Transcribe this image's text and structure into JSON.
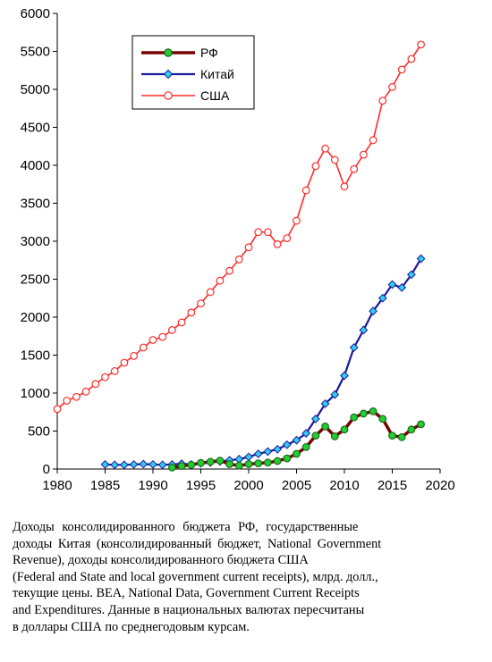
{
  "chart_data": {
    "type": "line",
    "title": "",
    "xlabel": "",
    "ylabel": "",
    "xlim": [
      1980,
      2020
    ],
    "ylim": [
      0,
      6000
    ],
    "x_ticks": [
      1980,
      1985,
      1990,
      1995,
      2000,
      2005,
      2010,
      2015,
      2020
    ],
    "y_ticks": [
      0,
      500,
      1000,
      1500,
      2000,
      2500,
      3000,
      3500,
      4000,
      4500,
      5000,
      5500,
      6000
    ],
    "grid": false,
    "legend_position": "top-left",
    "series": [
      {
        "name": "РФ",
        "color": "#7a0000",
        "marker": "circle",
        "marker_fill": "#22cc33",
        "points": [
          [
            1992,
            20
          ],
          [
            1993,
            40
          ],
          [
            1994,
            55
          ],
          [
            1995,
            80
          ],
          [
            1996,
            95
          ],
          [
            1997,
            110
          ],
          [
            1998,
            65
          ],
          [
            1999,
            45
          ],
          [
            2000,
            65
          ],
          [
            2001,
            75
          ],
          [
            2002,
            85
          ],
          [
            2003,
            105
          ],
          [
            2004,
            140
          ],
          [
            2005,
            200
          ],
          [
            2006,
            290
          ],
          [
            2007,
            440
          ],
          [
            2008,
            560
          ],
          [
            2009,
            430
          ],
          [
            2010,
            520
          ],
          [
            2011,
            680
          ],
          [
            2012,
            730
          ],
          [
            2013,
            760
          ],
          [
            2014,
            660
          ],
          [
            2015,
            440
          ],
          [
            2016,
            420
          ],
          [
            2017,
            520
          ],
          [
            2018,
            590
          ]
        ]
      },
      {
        "name": "Китай",
        "color": "#1a1a9e",
        "marker": "diamond",
        "marker_fill": "#33ccee",
        "points": [
          [
            1985,
            60
          ],
          [
            1986,
            55
          ],
          [
            1987,
            55
          ],
          [
            1988,
            60
          ],
          [
            1989,
            65
          ],
          [
            1990,
            60
          ],
          [
            1991,
            55
          ],
          [
            1992,
            60
          ],
          [
            1993,
            70
          ],
          [
            1994,
            60
          ],
          [
            1995,
            75
          ],
          [
            1996,
            85
          ],
          [
            1997,
            100
          ],
          [
            1998,
            115
          ],
          [
            1999,
            130
          ],
          [
            2000,
            160
          ],
          [
            2001,
            200
          ],
          [
            2002,
            230
          ],
          [
            2003,
            260
          ],
          [
            2004,
            320
          ],
          [
            2005,
            380
          ],
          [
            2006,
            470
          ],
          [
            2007,
            660
          ],
          [
            2008,
            860
          ],
          [
            2009,
            980
          ],
          [
            2010,
            1230
          ],
          [
            2011,
            1600
          ],
          [
            2012,
            1830
          ],
          [
            2013,
            2080
          ],
          [
            2014,
            2250
          ],
          [
            2015,
            2430
          ],
          [
            2016,
            2390
          ],
          [
            2017,
            2560
          ],
          [
            2018,
            2770
          ]
        ]
      },
      {
        "name": "США",
        "color": "#ff2a2a",
        "marker": "circle",
        "marker_fill": "#ffffff",
        "points": [
          [
            1980,
            790
          ],
          [
            1981,
            900
          ],
          [
            1982,
            950
          ],
          [
            1983,
            1020
          ],
          [
            1984,
            1120
          ],
          [
            1985,
            1210
          ],
          [
            1986,
            1290
          ],
          [
            1987,
            1400
          ],
          [
            1988,
            1490
          ],
          [
            1989,
            1600
          ],
          [
            1990,
            1700
          ],
          [
            1991,
            1740
          ],
          [
            1992,
            1830
          ],
          [
            1993,
            1930
          ],
          [
            1994,
            2060
          ],
          [
            1995,
            2180
          ],
          [
            1996,
            2330
          ],
          [
            1997,
            2480
          ],
          [
            1998,
            2610
          ],
          [
            1999,
            2760
          ],
          [
            2000,
            2920
          ],
          [
            2001,
            3120
          ],
          [
            2002,
            3120
          ],
          [
            2003,
            2960
          ],
          [
            2004,
            3040
          ],
          [
            2005,
            3270
          ],
          [
            2006,
            3670
          ],
          [
            2007,
            3990
          ],
          [
            2008,
            4220
          ],
          [
            2009,
            4070
          ],
          [
            2010,
            3720
          ],
          [
            2011,
            3950
          ],
          [
            2012,
            4140
          ],
          [
            2013,
            4330
          ],
          [
            2014,
            4850
          ],
          [
            2015,
            5030
          ],
          [
            2016,
            5260
          ],
          [
            2017,
            5400
          ],
          [
            2018,
            5590
          ]
        ]
      }
    ]
  },
  "caption": {
    "lines": [
      "Доходы консолидированного бюджета РФ, государственные",
      "доходы Китая (консолидированный бюджет, National Government",
      "Revenue), доходы консолидированного бюджета США",
      "(Federal and State and local government current receipts), млрд. долл.,",
      "текущие цены. BEA, National Data, Government Current Receipts",
      "and Expenditures. Данные в национальных валютах пересчитаны",
      "в доллары США по среднегодовым курсам."
    ]
  }
}
